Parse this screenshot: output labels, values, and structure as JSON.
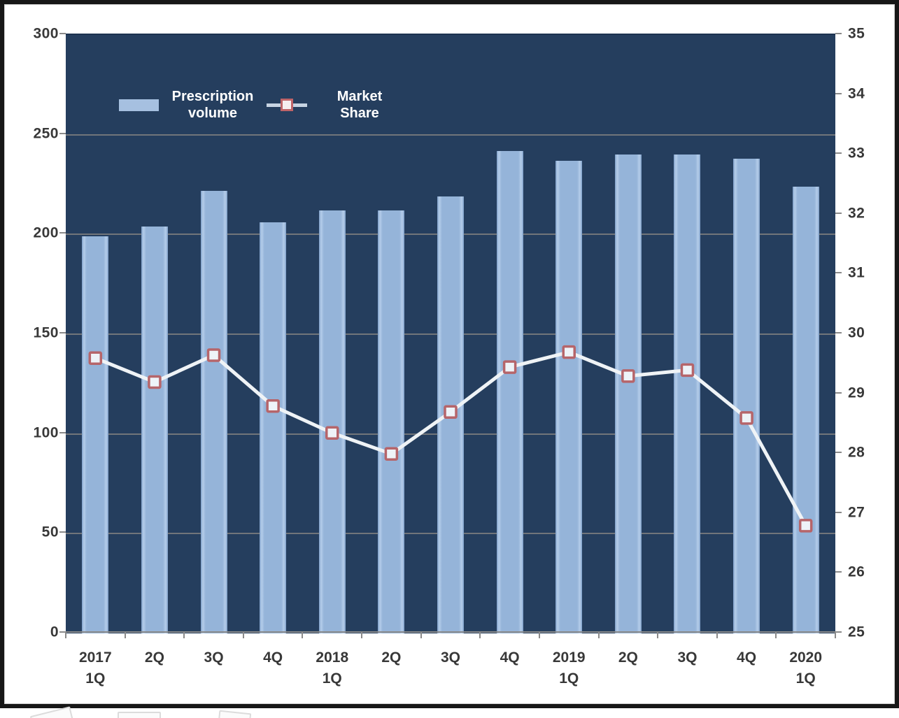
{
  "chart_data": {
    "type": "bar",
    "categories": [
      "2017 1Q",
      "2Q",
      "3Q",
      "4Q",
      "2018 1Q",
      "2Q",
      "3Q",
      "4Q",
      "2019 1Q",
      "2Q",
      "3Q",
      "4Q",
      "2020 1Q"
    ],
    "categories_two_line": [
      [
        "2017",
        "1Q"
      ],
      [
        "2Q"
      ],
      [
        "3Q"
      ],
      [
        "4Q"
      ],
      [
        "2018",
        "1Q"
      ],
      [
        "2Q"
      ],
      [
        "3Q"
      ],
      [
        "4Q"
      ],
      [
        "2019",
        "1Q"
      ],
      [
        "2Q"
      ],
      [
        "3Q"
      ],
      [
        "4Q"
      ],
      [
        "2020",
        "1Q"
      ]
    ],
    "series": [
      {
        "name": "Prescription volume",
        "kind": "bar",
        "axis": "left",
        "values": [
          199,
          204,
          222,
          206,
          212,
          212,
          219,
          242,
          237,
          240,
          240,
          238,
          224
        ]
      },
      {
        "name": "Market Share",
        "kind": "line",
        "axis": "right",
        "values": [
          29.6,
          29.2,
          29.65,
          28.8,
          28.35,
          28.0,
          28.7,
          29.45,
          29.7,
          29.3,
          29.4,
          28.6,
          26.8
        ]
      }
    ],
    "left_axis": {
      "min": 0,
      "max": 300,
      "step": 50,
      "tick_labels": [
        "0",
        "50",
        "100",
        "150",
        "200",
        "250",
        "300"
      ]
    },
    "right_axis": {
      "min": 25,
      "max": 35,
      "step": 1,
      "tick_labels": [
        "25",
        "26",
        "27",
        "28",
        "29",
        "30",
        "31",
        "32",
        "33",
        "34",
        "35"
      ]
    },
    "grid": true,
    "legend_position": "top-left-inside",
    "title": "",
    "xlabel": "",
    "ylabel": ""
  },
  "legend": {
    "bar_label": "Prescription\nvolume",
    "line_label": "Market\nShare"
  },
  "colors": {
    "plot_background": "#253e5e",
    "bar": "#95b4d9",
    "gridline": "#7f7f7f",
    "axis_text": "#383838",
    "legend_text": "#ffffff",
    "line": "#eff3f6",
    "marker_fill": "#eef3f8",
    "marker_border": "#b6656a",
    "frame_border": "#171717"
  }
}
